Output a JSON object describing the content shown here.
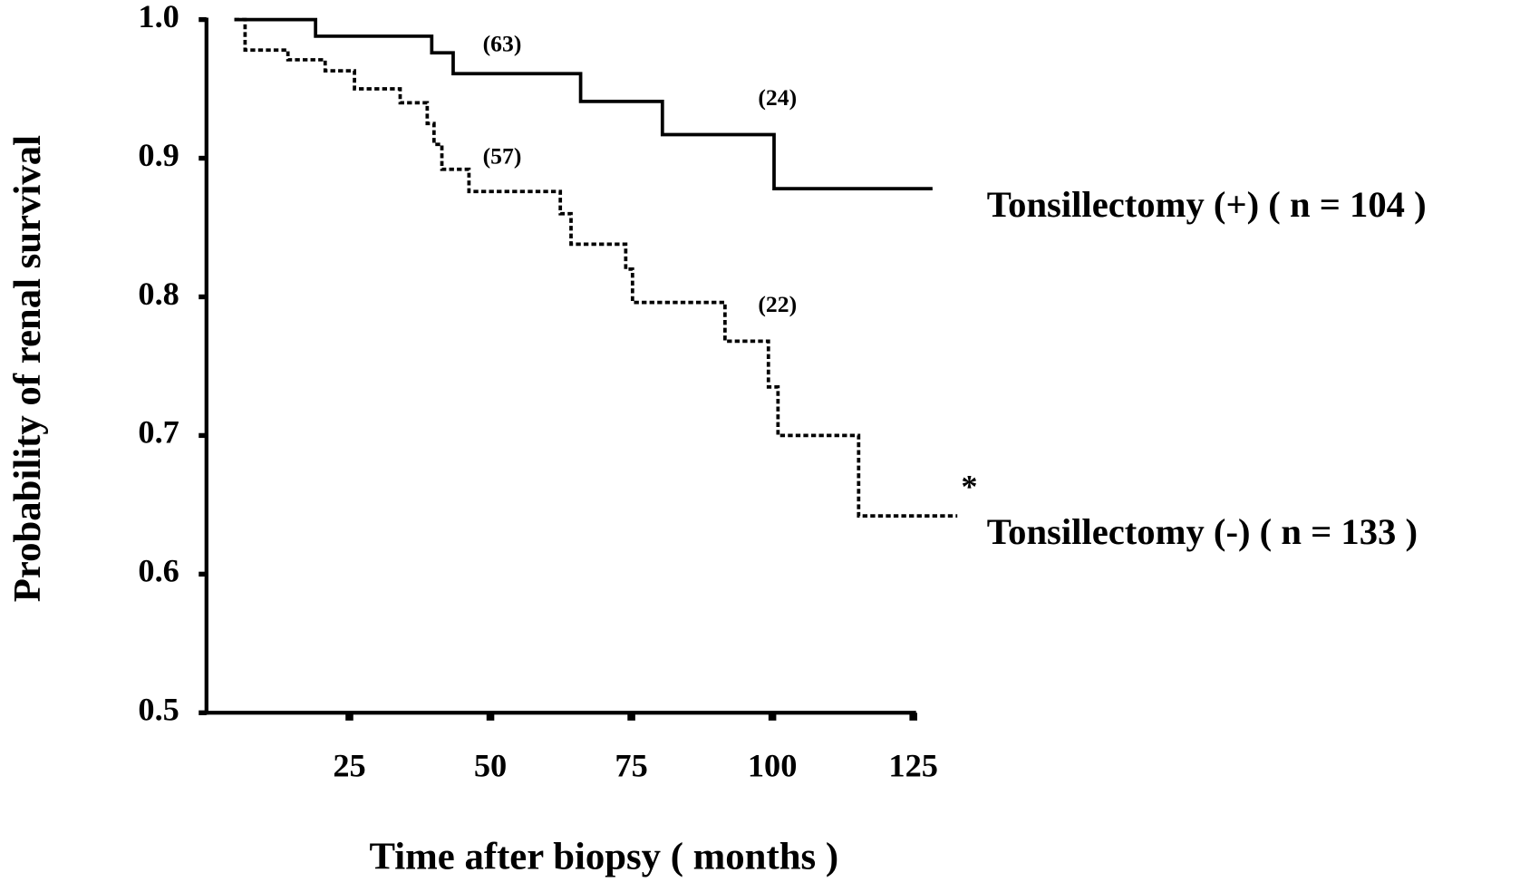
{
  "chart_data": {
    "type": "step",
    "xlabel": "Time after biopsy ( months )",
    "ylabel": "Probability of renal survival",
    "xlim": [
      0,
      126
    ],
    "ylim": [
      0.5,
      1.0
    ],
    "xticks": [
      25,
      50,
      75,
      100,
      125
    ],
    "yticks": [
      0.5,
      0.6,
      0.7,
      0.8,
      0.9,
      {
        "value": 1,
        "label": "1.0"
      }
    ],
    "series": [
      {
        "name": "Tonsillectomy (+)  ( n = 104 )",
        "color": "#000000",
        "style": "solid",
        "x": [
          4.6,
          19,
          39.6,
          43.4,
          66,
          80.5,
          100.3,
          128.4
        ],
        "values": [
          1.0,
          0.988,
          0.976,
          0.961,
          0.941,
          0.917,
          0.878,
          0.878
        ]
      },
      {
        "name": "Tonsillectomy (-)  ( n = 133 )",
        "color": "#000000",
        "style": "dotted",
        "x": [
          4.6,
          6.5,
          14.1,
          20.7,
          25.9,
          34,
          38.8,
          40,
          41.4,
          46.2,
          62.4,
          64.3,
          74,
          75.2,
          91.6,
          99.3,
          101,
          115.3,
          132.8
        ],
        "values": [
          1.0,
          0.978,
          0.971,
          0.963,
          0.95,
          0.94,
          0.925,
          0.91,
          0.892,
          0.876,
          0.86,
          0.838,
          0.82,
          0.796,
          0.768,
          0.735,
          0.7,
          0.642,
          0.642
        ]
      }
    ],
    "annotations": [
      "(63)",
      "(24)",
      "(57)",
      "(22)",
      "*"
    ]
  }
}
